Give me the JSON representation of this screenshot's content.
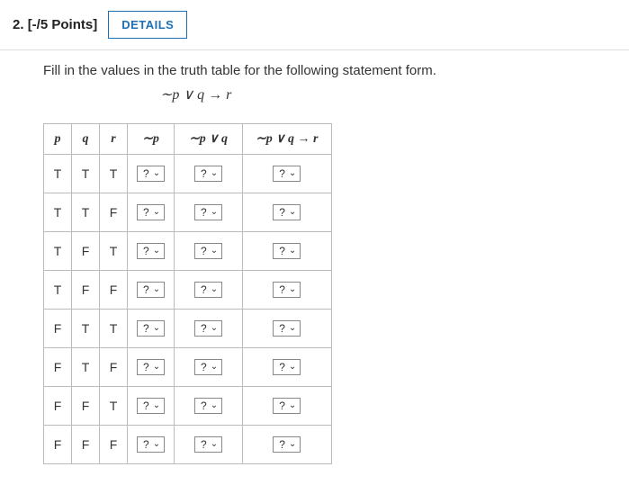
{
  "header": {
    "qnum": "2.",
    "points": "[-/5 Points]",
    "details_label": "DETAILS"
  },
  "instruction": "Fill in the values in the truth table for the following statement form.",
  "expression": "∼p ∨ q → r",
  "columns": {
    "p": "p",
    "q": "q",
    "r": "r",
    "notp": "∼p",
    "notp_or_q": "∼p ∨ q",
    "full": "∼p ∨ q → r"
  },
  "select_placeholder": "?",
  "rows": [
    {
      "p": "T",
      "q": "T",
      "r": "T"
    },
    {
      "p": "T",
      "q": "T",
      "r": "F"
    },
    {
      "p": "T",
      "q": "F",
      "r": "T"
    },
    {
      "p": "T",
      "q": "F",
      "r": "F"
    },
    {
      "p": "F",
      "q": "T",
      "r": "T"
    },
    {
      "p": "F",
      "q": "T",
      "r": "F"
    },
    {
      "p": "F",
      "q": "F",
      "r": "T"
    },
    {
      "p": "F",
      "q": "F",
      "r": "F"
    }
  ],
  "colors": {
    "accent": "#1e6fb3",
    "border": "#bbbbbb",
    "text": "#333333"
  }
}
